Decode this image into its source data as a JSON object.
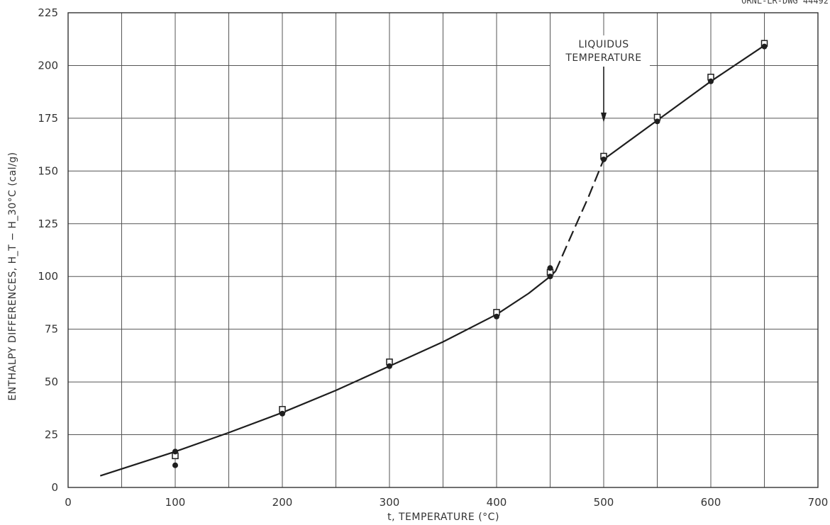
{
  "drawing_number": "ORNL-LR-DWG 44492",
  "chart_data": {
    "type": "scatter",
    "xlabel": "t, TEMPERATURE (°C)",
    "ylabel": "ENTHALPY DIFFERENCES, H_T − H_30°C (cal/g)",
    "xlim": [
      0,
      700
    ],
    "ylim": [
      0,
      225
    ],
    "x_ticks": [
      0,
      100,
      200,
      300,
      400,
      500,
      600,
      700
    ],
    "x_tick_labels": [
      "0",
      "100",
      "200",
      "300",
      "400",
      "500",
      "600",
      "700"
    ],
    "y_ticks": [
      0,
      25,
      50,
      75,
      100,
      125,
      150,
      175,
      200,
      225
    ],
    "y_tick_labels": [
      "0",
      "25",
      "50",
      "75",
      "100",
      "125",
      "150",
      "175",
      "200",
      "225"
    ],
    "grid": true,
    "annotation": {
      "lines": [
        "LIQUIDUS",
        "TEMPERATURE"
      ],
      "x": 500,
      "arrow_tip_y": 173
    },
    "series": [
      {
        "marker": "open-square",
        "points": [
          [
            100,
            15
          ],
          [
            200,
            37
          ],
          [
            300,
            59.5
          ],
          [
            400,
            83
          ],
          [
            450,
            102
          ],
          [
            500,
            157
          ],
          [
            550,
            175.5
          ],
          [
            600,
            194.5
          ],
          [
            650,
            210.5
          ]
        ]
      },
      {
        "marker": "filled-circle",
        "points": [
          [
            100,
            17
          ],
          [
            100,
            10.5
          ],
          [
            200,
            35
          ],
          [
            300,
            57.5
          ],
          [
            400,
            81
          ],
          [
            450,
            104
          ],
          [
            450,
            100
          ],
          [
            500,
            155.5
          ],
          [
            550,
            173.5
          ],
          [
            600,
            192.5
          ],
          [
            650,
            209
          ]
        ]
      }
    ],
    "curve_solid_low": [
      [
        30,
        5.5
      ],
      [
        100,
        17
      ],
      [
        150,
        26
      ],
      [
        200,
        35.5
      ],
      [
        250,
        46
      ],
      [
        300,
        57.5
      ],
      [
        350,
        69
      ],
      [
        400,
        82
      ],
      [
        430,
        92
      ],
      [
        450,
        100
      ],
      [
        455,
        102.5
      ]
    ],
    "curve_dashed": [
      [
        455,
        102.5
      ],
      [
        472,
        122
      ],
      [
        486,
        138
      ],
      [
        500,
        155.5
      ]
    ],
    "curve_solid_high": [
      [
        500,
        155.5
      ],
      [
        550,
        174
      ],
      [
        600,
        192.5
      ],
      [
        650,
        209.5
      ]
    ]
  }
}
